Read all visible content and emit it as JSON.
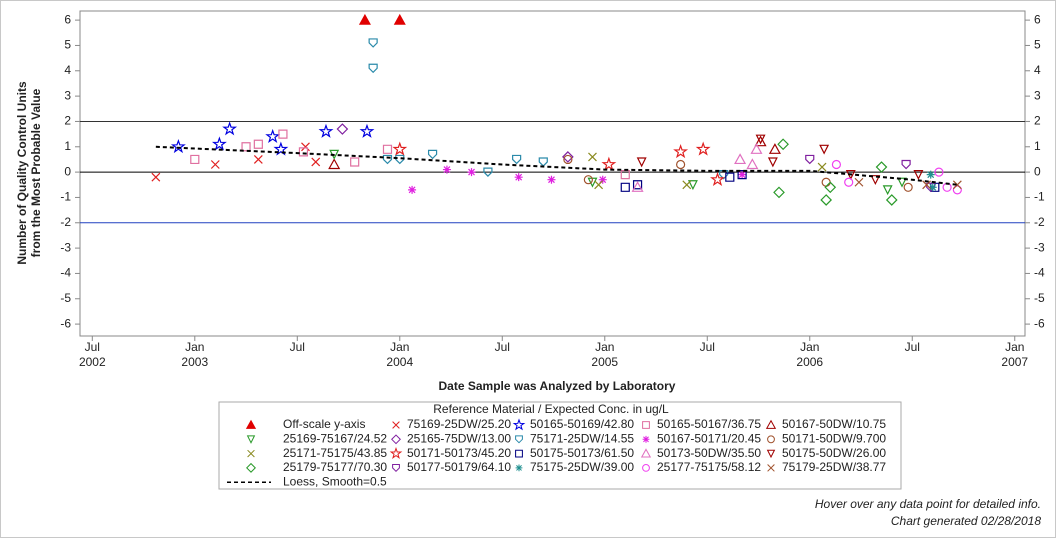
{
  "chart_data": {
    "type": "scatter",
    "ylabel": [
      "Number of Quality Control Units",
      "from the Most Probable Value"
    ],
    "xlabel": "Date Sample was Analyzed by Laboratory",
    "legend_title": "Reference Material / Expected Conc. in ug/L",
    "xlim": [
      2002.44,
      2007.05
    ],
    "ylim": [
      -6.47,
      6.36
    ],
    "yticks": [
      -6,
      -5,
      -4,
      -3,
      -2,
      -1,
      0,
      1,
      2,
      3,
      4,
      5,
      6
    ],
    "xticks": [
      {
        "value": 2002.5,
        "label": "Jul 2002"
      },
      {
        "value": 2003,
        "label": "Jan 2003"
      },
      {
        "value": 2003.5,
        "label": "Jul"
      },
      {
        "value": 2004,
        "label": "Jan 2004"
      },
      {
        "value": 2004.5,
        "label": "Jul"
      },
      {
        "value": 2005,
        "label": "Jan 2005"
      },
      {
        "value": 2005.5,
        "label": "Jul"
      },
      {
        "value": 2006,
        "label": "Jan 2006"
      },
      {
        "value": 2006.5,
        "label": "Jul"
      },
      {
        "value": 2007,
        "label": "Jan 2007"
      }
    ],
    "reference_lines": [
      {
        "value": 2,
        "color": "#333333"
      },
      {
        "value": 0,
        "color": "#000000"
      },
      {
        "value": -2,
        "color": "#2040c0"
      }
    ],
    "series": [
      {
        "name": "Off-scale y-axis",
        "marker": "triangle",
        "filled": true,
        "color": "#e00000",
        "x": [
          2003.83,
          2004.0
        ],
        "values": [
          6,
          6
        ]
      },
      {
        "name": "75169-25DW/25.20",
        "marker": "x",
        "color": "#e02020",
        "x": [
          2002.81,
          2003.1,
          2003.31,
          2003.54,
          2003.59
        ],
        "values": [
          -0.2,
          0.3,
          0.5,
          1.0,
          0.4
        ]
      },
      {
        "name": "50165-50169/42.80",
        "marker": "star",
        "color": "#0000e0",
        "x": [
          2002.92,
          2003.12,
          2003.17,
          2003.38,
          2003.42,
          2003.64,
          2003.84
        ],
        "values": [
          1.0,
          1.1,
          1.7,
          1.4,
          0.9,
          1.6,
          1.6
        ]
      },
      {
        "name": "50165-50167/36.75",
        "marker": "square",
        "color": "#e070a0",
        "x": [
          2003.0,
          2003.25,
          2003.31,
          2003.43,
          2003.53,
          2003.78,
          2003.94,
          2005.1
        ],
        "values": [
          0.5,
          1.0,
          1.1,
          1.5,
          0.8,
          0.4,
          0.9,
          -0.1
        ]
      },
      {
        "name": "50167-50DW/10.75",
        "marker": "triangle",
        "color": "#a00000",
        "x": [
          2003.68,
          2005.76,
          2005.83
        ],
        "values": [
          0.3,
          1.2,
          0.9
        ]
      },
      {
        "name": "25169-75167/24.52",
        "marker": "down-triangle",
        "color": "#2a9a2a",
        "x": [
          2003.68,
          2004.94,
          2005.43,
          2006.38,
          2006.45
        ],
        "values": [
          0.7,
          -0.4,
          -0.5,
          -0.7,
          -0.4
        ]
      },
      {
        "name": "25165-75DW/13.00",
        "marker": "diamond",
        "color": "#8020a0",
        "x": [
          2003.72,
          2004.82
        ],
        "values": [
          1.7,
          0.6
        ]
      },
      {
        "name": "75171-25DW/14.55",
        "marker": "shield",
        "color": "#2a8aaa",
        "x": [
          2003.87,
          2003.87,
          2003.94,
          2004.0,
          2004.16,
          2004.43,
          2004.57,
          2004.7,
          2005.58
        ],
        "values": [
          5.1,
          4.1,
          0.5,
          0.5,
          0.7,
          0,
          0.5,
          0.4,
          -0.1
        ]
      },
      {
        "name": "50167-50171/20.45",
        "marker": "asterisk",
        "color": "#e020e0",
        "x": [
          2004.06,
          2004.23,
          2004.35,
          2004.58,
          2004.74,
          2004.99,
          2005.67
        ],
        "values": [
          -0.7,
          0.1,
          0,
          -0.2,
          -0.3,
          -0.3,
          -0.1
        ]
      },
      {
        "name": "50171-50DW/9.700",
        "marker": "circle",
        "color": "#a0522d",
        "x": [
          2004.82,
          2004.92,
          2005.37,
          2006.08,
          2006.48
        ],
        "values": [
          0.5,
          -0.3,
          0.3,
          -0.4,
          -0.6
        ]
      },
      {
        "name": "25171-75175/43.85",
        "marker": "x",
        "color": "#8a8a20",
        "x": [
          2004.94,
          2004.97,
          2005.4,
          2006.06
        ],
        "values": [
          0.6,
          -0.5,
          -0.5,
          0.2
        ]
      },
      {
        "name": "50171-50173/45.20",
        "marker": "star",
        "color": "#e02020",
        "x": [
          2004.0,
          2005.02,
          2005.37,
          2005.48,
          2005.55
        ],
        "values": [
          0.9,
          0.3,
          0.8,
          0.9,
          -0.3
        ]
      },
      {
        "name": "50175-50173/61.50",
        "marker": "square",
        "color": "#000080",
        "x": [
          2005.1,
          2005.16,
          2005.61,
          2005.67,
          2006.61
        ],
        "values": [
          -0.6,
          -0.5,
          -0.2,
          -0.1,
          -0.6
        ]
      },
      {
        "name": "50173-50DW/35.50",
        "marker": "triangle",
        "color": "#e070c0",
        "x": [
          2005.16,
          2005.66,
          2005.72,
          2005.74
        ],
        "values": [
          -0.6,
          0.5,
          0.3,
          0.9
        ]
      },
      {
        "name": "50175-50DW/26.00",
        "marker": "down-triangle",
        "color": "#a00000",
        "x": [
          2005.18,
          2005.76,
          2005.82,
          2006.07,
          2006.2,
          2006.32,
          2006.53
        ],
        "values": [
          0.4,
          1.3,
          0.4,
          0.9,
          -0.1,
          -0.3,
          -0.1
        ]
      },
      {
        "name": "25179-75177/70.30",
        "marker": "diamond",
        "color": "#2a9a2a",
        "x": [
          2005.87,
          2005.85,
          2006.08,
          2006.1,
          2006.35,
          2006.4
        ],
        "values": [
          1.1,
          -0.8,
          -1.1,
          -0.6,
          0.2,
          -1.1
        ]
      },
      {
        "name": "50177-50179/64.10",
        "marker": "shield",
        "color": "#8020a0",
        "x": [
          2006.0,
          2006.47,
          2006.59
        ],
        "values": [
          0.5,
          0.3,
          -0.6
        ]
      },
      {
        "name": "75175-25DW/39.00",
        "marker": "asterisk",
        "color": "#209090",
        "x": [
          2006.59,
          2006.6
        ],
        "values": [
          -0.1,
          -0.6
        ]
      },
      {
        "name": "25177-75175/58.12",
        "marker": "circle",
        "color": "#f040f0",
        "x": [
          2006.13,
          2006.19,
          2006.63,
          2006.67,
          2006.72
        ],
        "values": [
          0.3,
          -0.4,
          0,
          -0.6,
          -0.7
        ]
      },
      {
        "name": "75179-25DW/38.77",
        "marker": "x",
        "color": "#a0522d",
        "x": [
          2006.24,
          2006.57,
          2006.72
        ],
        "values": [
          -0.4,
          -0.5,
          -0.5
        ]
      },
      {
        "name": "Loess, Smooth=0.5",
        "marker": "line",
        "color": "#000000",
        "x": [
          2002.81,
          2003.5,
          2004.0,
          2004.5,
          2005.0,
          2005.5,
          2006.0,
          2006.5,
          2006.72
        ],
        "values": [
          1.0,
          0.75,
          0.55,
          0.3,
          0.1,
          0.05,
          0.05,
          -0.3,
          -0.5
        ]
      }
    ],
    "footer": [
      "Hover over any data point for detailed info.",
      "Chart generated 02/28/2018"
    ]
  }
}
